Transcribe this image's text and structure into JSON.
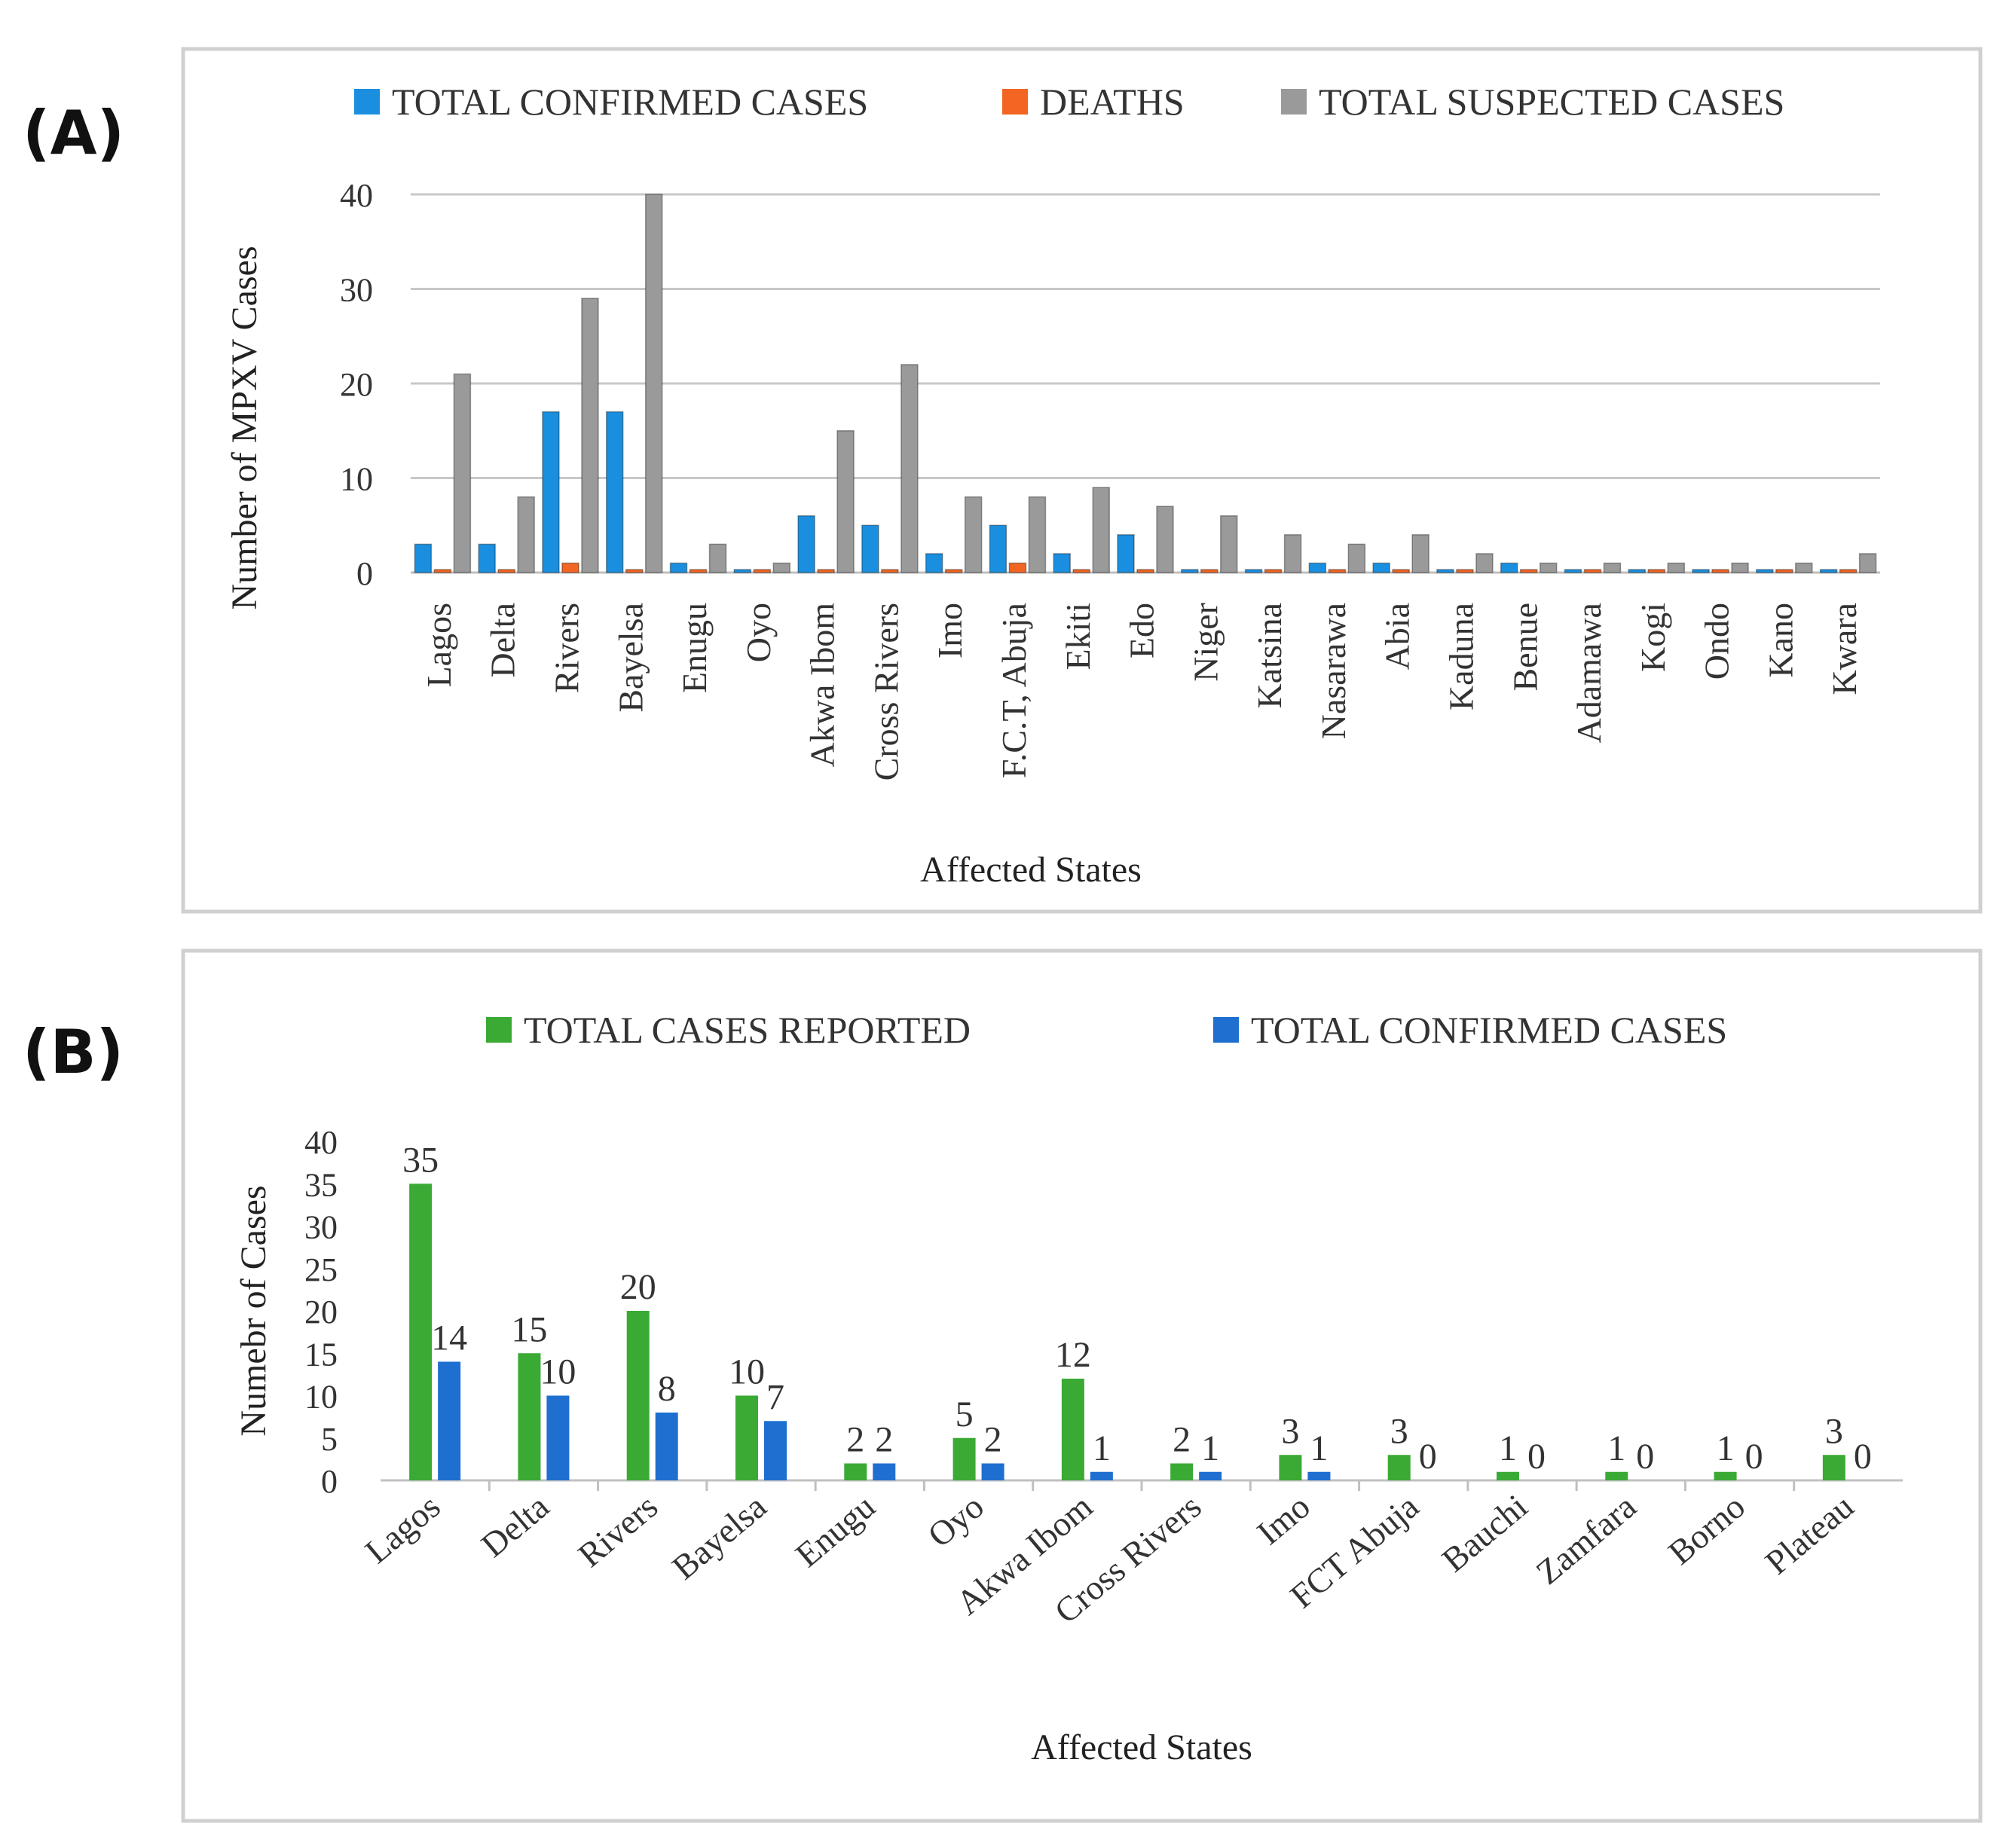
{
  "chart_data": [
    {
      "id": "A",
      "panel_label": "(A)",
      "type": "bar",
      "title": "",
      "xlabel": "Affected States",
      "ylabel": "Number of MPXV Cases",
      "ylim": [
        0,
        40
      ],
      "yticks": [
        "0",
        "10",
        "20",
        "30",
        "40"
      ],
      "grid": true,
      "legend_position": "top",
      "categories": [
        "Lagos",
        "Delta",
        "Rivers",
        "Bayelsa",
        "Enugu",
        "Oyo",
        "Akwa Ibom",
        "Cross Rivers",
        "Imo",
        "F.C.T, Abuja",
        "Ekiti",
        "Edo",
        "Niger",
        "Katsina",
        "Nasarawa",
        "Abia",
        "Kaduna",
        "Benue",
        "Adamawa",
        "Kogi",
        "Ondo",
        "Kano",
        "Kwara"
      ],
      "series": [
        {
          "name": "TOTAL CONFIRMED CASES",
          "color": "#1a8fe0",
          "values": [
            3,
            3,
            17,
            17,
            1,
            0,
            6,
            5,
            2,
            5,
            2,
            4,
            0,
            0,
            1,
            1,
            0,
            1,
            0,
            0,
            0,
            0,
            0
          ]
        },
        {
          "name": "DEATHS",
          "color": "#f26522",
          "values": [
            0,
            0,
            1,
            0,
            0,
            0,
            0,
            0,
            0,
            1,
            0,
            0,
            0,
            0,
            0,
            0,
            0,
            0,
            0,
            0,
            0,
            0,
            0
          ]
        },
        {
          "name": "TOTAL SUSPECTED CASES",
          "color": "#9a9a9a",
          "values": [
            21,
            8,
            29,
            40,
            3,
            1,
            15,
            22,
            8,
            8,
            9,
            7,
            6,
            4,
            3,
            4,
            2,
            1,
            1,
            1,
            1,
            1,
            2
          ]
        }
      ]
    },
    {
      "id": "B",
      "panel_label": "(B)",
      "type": "bar",
      "title": "",
      "xlabel": "Affected States",
      "ylabel": "Numebr of Cases",
      "ylim": [
        0,
        40
      ],
      "yticks": [
        "0",
        "5",
        "10",
        "15",
        "20",
        "25",
        "30",
        "35",
        "40"
      ],
      "grid": false,
      "legend_position": "top",
      "categories": [
        "Lagos",
        "Delta",
        "Rivers",
        "Bayelsa",
        "Enugu",
        "Oyo",
        "Akwa Ibom",
        "Cross Rivers",
        "Imo",
        "FCT Abuja",
        "Bauchi",
        "Zamfara",
        "Borno",
        "Plateau"
      ],
      "series": [
        {
          "name": "TOTAL CASES REPORTED",
          "color": "#3aaa35",
          "values": [
            35,
            15,
            20,
            10,
            2,
            5,
            12,
            2,
            3,
            3,
            1,
            1,
            1,
            3
          ]
        },
        {
          "name": "TOTAL CONFIRMED CASES",
          "color": "#1e6fd0",
          "values": [
            14,
            10,
            8,
            7,
            2,
            2,
            1,
            1,
            1,
            0,
            0,
            0,
            0,
            0
          ]
        }
      ]
    }
  ]
}
